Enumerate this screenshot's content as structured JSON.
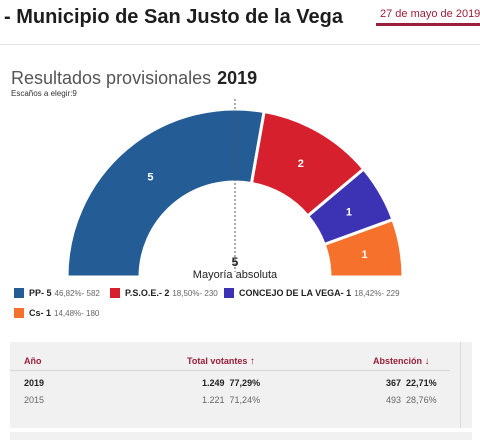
{
  "header": {
    "title": "- Municipio de San Justo de la Vega",
    "date": "27 de mayo de 2019,"
  },
  "results": {
    "title": "Resultados provisionales",
    "year": "2019",
    "seats_to_elect": "Escaños a elegir:9",
    "majority_number": "5",
    "majority_label": "Mayoría absoluta"
  },
  "parties": [
    {
      "name": "PP- 5",
      "seats": 5,
      "seats_label": "5",
      "detail": "46,82%- 582",
      "color": "#245c96"
    },
    {
      "name": "P.S.O.E.- 2",
      "seats": 2,
      "seats_label": "2",
      "detail": "18,50%- 230",
      "color": "#d7202e"
    },
    {
      "name": "CONCEJO DE LA VEGA- 1",
      "seats": 1,
      "seats_label": "1",
      "detail": "18,42%- 229",
      "color": "#3b33b3"
    },
    {
      "name": "Cs- 1",
      "seats": 1,
      "seats_label": "1",
      "detail": "14,48%- 180",
      "color": "#f6712c"
    }
  ],
  "table": {
    "col_year": "Año",
    "col_votes": "Total votantes",
    "col_abst": "Abstención",
    "rows": [
      {
        "year": "2019",
        "votes": "1.249",
        "votes_pct": "77,29%",
        "abst": "367",
        "abst_pct": "22,71%"
      },
      {
        "year": "2015",
        "votes": "1.221",
        "votes_pct": "71,24%",
        "abst": "493",
        "abst_pct": "28,76%"
      }
    ]
  }
}
